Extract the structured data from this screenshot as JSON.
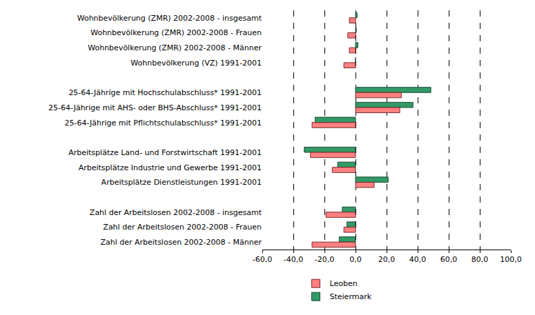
{
  "chart_data": {
    "type": "bar",
    "orientation": "horizontal",
    "categories": [
      "Wohnbevölkerung (ZMR) 2002-2008 - insgesamt",
      "Wohnbevölkerung (ZMR) 2002-2008 - Frauen",
      "Wohnbevölkerung (ZMR) 2002-2008 - Männer",
      "Wohnbevölkerung (VZ) 1991-2001",
      null,
      "25-64-Jährige mit Hochschulabschluss* 1991-2001",
      "25-64-Jährige mit AHS- oder BHS-Abschluss* 1991-2001",
      "25-64-Jährige mit Pflichtschulabschluss* 1991-2001",
      null,
      "Arbeitsplätze Land- und Forstwirtschaft 1991-2001",
      "Arbeitsplätze Industrie und Gewerbe 1991-2001",
      "Arbeitsplätze Dienstleistungen 1991-2001",
      null,
      "Zahl der Arbeitslosen 2002-2008 - insgesamt",
      "Zahl der Arbeitslosen 2002-2008 - Frauen",
      "Zahl der Arbeitslosen 2002-2008 - Männer"
    ],
    "series": [
      {
        "name": "Leoben",
        "color": "#ff8080",
        "values": [
          -4,
          -5,
          -4,
          -7.5,
          null,
          29.5,
          28.5,
          -28,
          null,
          -29,
          -15,
          12,
          null,
          -19,
          -7.5,
          -28
        ]
      },
      {
        "name": "Steiermark",
        "color": "#339966",
        "values": [
          1,
          0.5,
          1.5,
          0,
          null,
          48.5,
          37,
          -26,
          null,
          -33,
          -11.5,
          21,
          null,
          -8.5,
          -5.5,
          -10.5
        ]
      }
    ],
    "xlim": [
      -60,
      100
    ],
    "xticks": [
      {
        "value": -60,
        "label": "-60,0"
      },
      {
        "value": -40,
        "label": "-40,0"
      },
      {
        "value": -20,
        "label": "-20,0"
      },
      {
        "value": 0,
        "label": "0,0"
      },
      {
        "value": 20,
        "label": "20,0"
      },
      {
        "value": 40,
        "label": "40,0"
      },
      {
        "value": 60,
        "label": "60,0"
      },
      {
        "value": 80,
        "label": "80,0"
      },
      {
        "value": 100,
        "label": "100,0"
      }
    ],
    "grid": true,
    "legend": "bottom"
  }
}
